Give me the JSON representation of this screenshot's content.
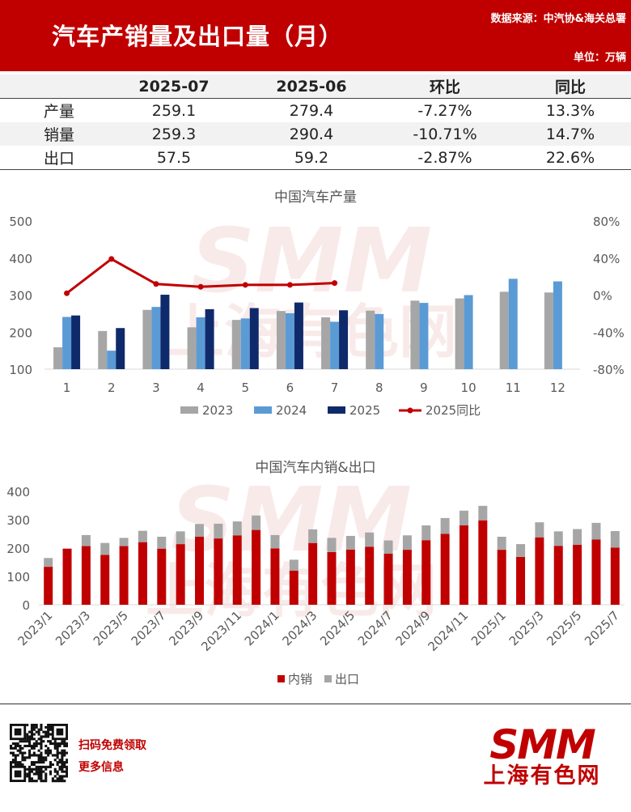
{
  "header": {
    "title": "汽车产销量及出口量（月）",
    "source": "数据来源：中汽协&海关总署",
    "unit": "单位：万辆"
  },
  "summary_table": {
    "columns": [
      "",
      "2025-07",
      "2025-06",
      "环比",
      "同比"
    ],
    "rows": [
      {
        "label": "产量",
        "cur": "259.1",
        "prev": "279.4",
        "mom": "-7.27%",
        "yoy": "13.3%"
      },
      {
        "label": "销量",
        "cur": "259.3",
        "prev": "290.4",
        "mom": "-10.71%",
        "yoy": "14.7%"
      },
      {
        "label": "出口",
        "cur": "57.5",
        "prev": "59.2",
        "mom": "-2.87%",
        "yoy": "22.6%"
      }
    ]
  },
  "chart_data": [
    {
      "type": "bar",
      "title": "中国汽车产量",
      "categories": [
        "1",
        "2",
        "3",
        "4",
        "5",
        "6",
        "7",
        "8",
        "9",
        "10",
        "11",
        "12"
      ],
      "y_ticks": [
        "100",
        "200",
        "300",
        "400",
        "500"
      ],
      "y2_ticks": [
        "-80%",
        "-40%",
        "0%",
        "40%",
        "80%"
      ],
      "ylim": [
        100,
        500
      ],
      "y2lim": [
        -80,
        80
      ],
      "series": [
        {
          "name": "2023",
          "color": "#a6a6a6",
          "values": [
            159,
            203,
            260,
            213,
            233,
            257,
            240,
            258,
            285,
            291,
            309,
            307
          ]
        },
        {
          "name": "2024",
          "color": "#5b9bd5",
          "values": [
            241,
            150,
            268,
            240,
            237,
            251,
            228,
            249,
            279,
            300,
            344,
            337
          ]
        },
        {
          "name": "2025",
          "color": "#0f2a6b",
          "values": [
            245,
            211,
            301,
            262,
            265,
            280,
            259,
            null,
            null,
            null,
            null,
            null
          ]
        }
      ],
      "line_series": {
        "name": "2025同比",
        "color": "#c00000",
        "values": [
          2,
          39,
          12,
          9,
          11,
          11,
          13,
          null,
          null,
          null,
          null,
          null
        ]
      },
      "legend_position": "bottom"
    },
    {
      "type": "bar",
      "title": "中国汽车内销&出口",
      "stacked": true,
      "categories": [
        "2023/1",
        "2023/2",
        "2023/3",
        "2023/4",
        "2023/5",
        "2023/6",
        "2023/7",
        "2023/8",
        "2023/9",
        "2023/10",
        "2023/11",
        "2023/12",
        "2024/1",
        "2024/2",
        "2024/3",
        "2024/4",
        "2024/5",
        "2024/6",
        "2024/7",
        "2024/8",
        "2024/9",
        "2024/10",
        "2024/11",
        "2024/12",
        "2025/1",
        "2025/2",
        "2025/3",
        "2025/4",
        "2025/5",
        "2025/6",
        "2025/7"
      ],
      "tick_labels": [
        "2023/1",
        "2023/3",
        "2023/5",
        "2023/7",
        "2023/9",
        "2023/11",
        "2024/1",
        "2024/3",
        "2024/5",
        "2024/7",
        "2024/9",
        "2024/11",
        "2025/1",
        "2025/3",
        "2025/5",
        "2025/7"
      ],
      "y_ticks": [
        "0",
        "100",
        "200",
        "300",
        "400"
      ],
      "ylim": [
        0,
        400
      ],
      "series": [
        {
          "name": "内销",
          "color": "#c00000",
          "values": [
            134,
            198,
            207,
            176,
            207,
            221,
            198,
            214,
            240,
            234,
            245,
            264,
            199,
            120,
            218,
            186,
            195,
            205,
            180,
            194,
            228,
            250,
            280,
            298,
            194,
            169,
            238,
            208,
            212,
            230,
            202
          ]
        },
        {
          "name": "出口",
          "color": "#a6a6a6",
          "values": [
            31,
            0,
            39,
            42,
            29,
            40,
            42,
            45,
            45,
            52,
            49,
            51,
            47,
            39,
            48,
            50,
            48,
            50,
            47,
            51,
            52,
            56,
            52,
            51,
            46,
            45,
            53,
            51,
            55,
            59,
            58
          ]
        }
      ],
      "legend_position": "bottom"
    }
  ],
  "footer": {
    "promo_line1": "扫码免费领取",
    "promo_line2": "更多信息",
    "logo_text": "SMM",
    "logo_sub": "上海有色网",
    "watermark": "SMM",
    "watermark_sub": "上海有色网"
  }
}
